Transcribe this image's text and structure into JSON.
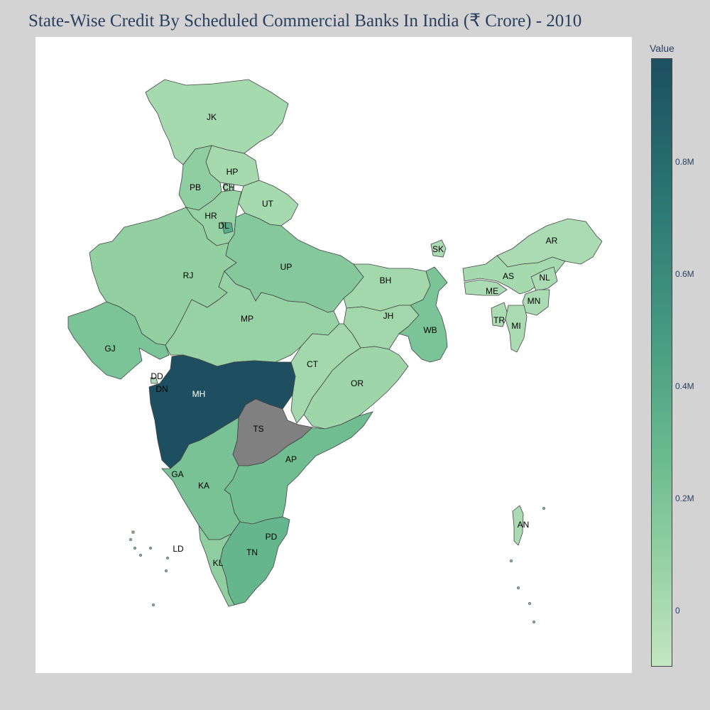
{
  "title": "State-Wise Credit By Scheduled Commercial Banks In India (₹ Crore) - 2010",
  "colorbar": {
    "title": "Value",
    "colors": [
      "#c4e6c3",
      "#96d2a4",
      "#6dbc90",
      "#4da284",
      "#36877a",
      "#266b6e",
      "#1d4f60"
    ],
    "ticks": [
      {
        "label": "0.8M",
        "value": 800000
      },
      {
        "label": "0.6M",
        "value": 600000
      },
      {
        "label": "0.4M",
        "value": 400000
      },
      {
        "label": "0.2M",
        "value": 200000
      },
      {
        "label": "0",
        "value": 0
      }
    ],
    "range": [
      -100000,
      985000
    ]
  },
  "missing_color": "#808080",
  "chart_data": {
    "type": "choropleth",
    "title": "State-Wise Credit By Scheduled Commercial Banks In India (₹ Crore) - 2010",
    "colorbar_title": "Value",
    "states": [
      {
        "code": "JK",
        "value": 20000
      },
      {
        "code": "HP",
        "value": 15000
      },
      {
        "code": "PB",
        "value": 110000
      },
      {
        "code": "CH",
        "value": 25000
      },
      {
        "code": "UT",
        "value": 20000
      },
      {
        "code": "HR",
        "value": 80000
      },
      {
        "code": "DL",
        "value": 380000
      },
      {
        "code": "RJ",
        "value": 100000
      },
      {
        "code": "UP",
        "value": 160000
      },
      {
        "code": "BH",
        "value": 30000
      },
      {
        "code": "SK",
        "value": 2000
      },
      {
        "code": "AR",
        "value": 2000
      },
      {
        "code": "AS",
        "value": 20000
      },
      {
        "code": "NL",
        "value": 1000
      },
      {
        "code": "ME",
        "value": 2000
      },
      {
        "code": "MN",
        "value": 1000
      },
      {
        "code": "TR",
        "value": 2000
      },
      {
        "code": "MI",
        "value": 1000
      },
      {
        "code": "GJ",
        "value": 200000
      },
      {
        "code": "MP",
        "value": 80000
      },
      {
        "code": "JH",
        "value": 35000
      },
      {
        "code": "WB",
        "value": 200000
      },
      {
        "code": "DD",
        "value": 2000
      },
      {
        "code": "DN",
        "value": 5000
      },
      {
        "code": "MH",
        "value": 985000
      },
      {
        "code": "CT",
        "value": 30000
      },
      {
        "code": "OR",
        "value": 50000
      },
      {
        "code": "TS",
        "value": null
      },
      {
        "code": "AP",
        "value": 250000
      },
      {
        "code": "GA",
        "value": 15000
      },
      {
        "code": "KA",
        "value": 210000
      },
      {
        "code": "PD",
        "value": 8000
      },
      {
        "code": "TN",
        "value": 300000
      },
      {
        "code": "KL",
        "value": 110000
      },
      {
        "code": "LD",
        "value": 100
      },
      {
        "code": "AN",
        "value": 1000
      }
    ]
  }
}
